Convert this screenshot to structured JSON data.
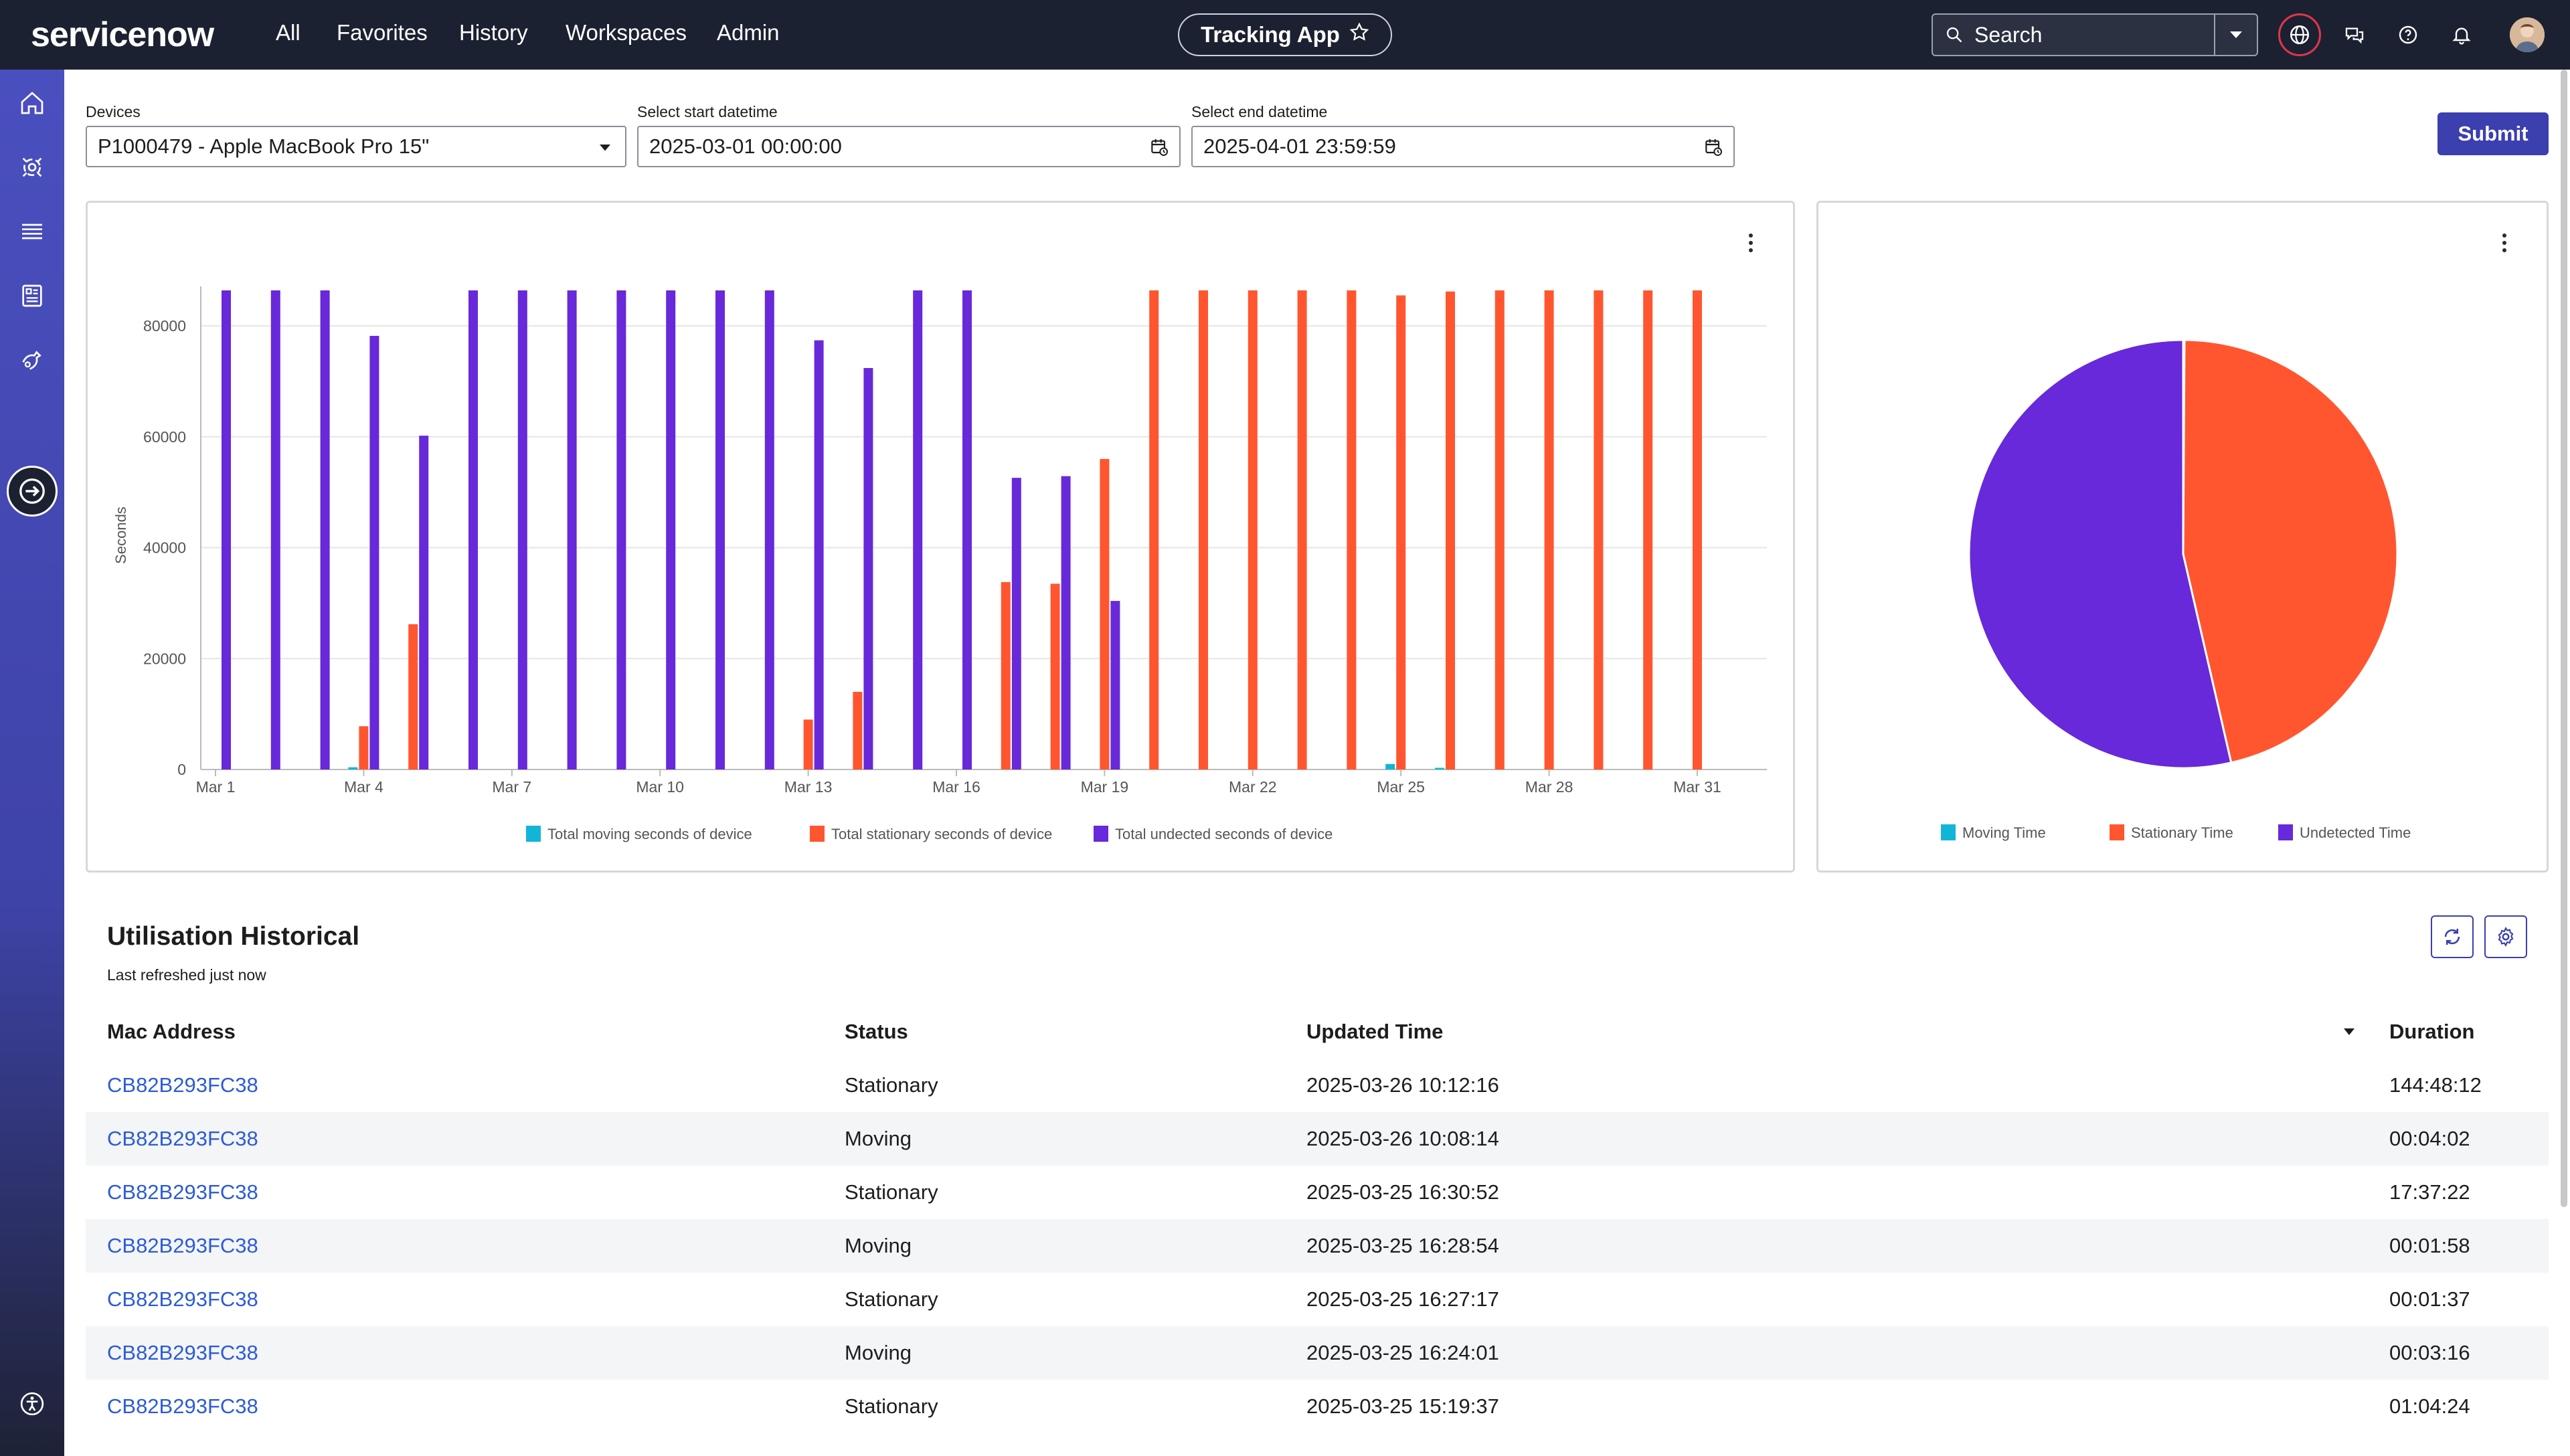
{
  "nav": {
    "logo_text": "servicenow",
    "links": [
      "All",
      "Favorites",
      "History",
      "Workspaces",
      "Admin"
    ],
    "app_pill": "Tracking App",
    "search_label": "Search"
  },
  "filters": {
    "devices_label": "Devices",
    "devices_value": "P1000479 - Apple MacBook Pro 15\"",
    "start_label": "Select start datetime",
    "start_value": "2025-03-01 00:00:00",
    "end_label": "Select end datetime",
    "end_value": "2025-04-01 23:59:59",
    "submit_label": "Submit"
  },
  "chart_data": [
    {
      "type": "bar",
      "ylabel": "Seconds",
      "ylim": [
        0,
        86400
      ],
      "yticks": [
        0,
        20000,
        40000,
        60000,
        80000
      ],
      "x_tick_labels": [
        "Mar 1",
        "Mar 4",
        "Mar 7",
        "Mar 10",
        "Mar 13",
        "Mar 16",
        "Mar 19",
        "Mar 22",
        "Mar 25",
        "Mar 28",
        "Mar 31"
      ],
      "categories": [
        "Mar 1",
        "Mar 2",
        "Mar 3",
        "Mar 4",
        "Mar 5",
        "Mar 6",
        "Mar 7",
        "Mar 8",
        "Mar 9",
        "Mar 10",
        "Mar 11",
        "Mar 12",
        "Mar 13",
        "Mar 14",
        "Mar 15",
        "Mar 16",
        "Mar 17",
        "Mar 18",
        "Mar 19",
        "Mar 20",
        "Mar 21",
        "Mar 22",
        "Mar 23",
        "Mar 24",
        "Mar 25",
        "Mar 26",
        "Mar 27",
        "Mar 28",
        "Mar 29",
        "Mar 30",
        "Mar 31"
      ],
      "series": [
        {
          "name": "Total moving seconds of device",
          "color": "#12b5d8",
          "values": [
            0,
            0,
            0,
            400,
            0,
            0,
            0,
            0,
            0,
            0,
            0,
            0,
            0,
            0,
            0,
            0,
            0,
            0,
            0,
            0,
            0,
            0,
            0,
            0,
            1000,
            300,
            0,
            0,
            0,
            0,
            0
          ]
        },
        {
          "name": "Total stationary seconds of device",
          "color": "#ff5630",
          "values": [
            0,
            0,
            0,
            7800,
            26200,
            0,
            0,
            0,
            0,
            0,
            0,
            0,
            9000,
            14000,
            0,
            0,
            33800,
            33500,
            56000,
            86400,
            86400,
            86400,
            86400,
            86400,
            85500,
            86200,
            86400,
            86400,
            86400,
            86400,
            86400
          ]
        },
        {
          "name": "Total undected seconds of device",
          "color": "#6729d9",
          "values": [
            86400,
            86400,
            86400,
            78200,
            60200,
            86400,
            86400,
            86400,
            86400,
            86400,
            86400,
            86400,
            77400,
            72400,
            86400,
            86400,
            52600,
            52900,
            30400,
            0,
            0,
            0,
            0,
            0,
            0,
            0,
            0,
            0,
            0,
            0,
            0
          ]
        }
      ]
    },
    {
      "type": "pie",
      "slices": [
        {
          "name": "Moving Time",
          "value": 0.1,
          "color": "#12b5d8"
        },
        {
          "name": "Stationary Time",
          "value": 46.3,
          "color": "#ff5630"
        },
        {
          "name": "Undetected Time",
          "value": 53.6,
          "color": "#6729d9"
        }
      ]
    }
  ],
  "table": {
    "title": "Utilisation Historical",
    "subtitle": "Last refreshed just now",
    "headers": {
      "mac": "Mac Address",
      "status": "Status",
      "time": "Updated Time",
      "duration": "Duration"
    },
    "rows": [
      {
        "mac": "CB82B293FC38",
        "status": "Stationary",
        "time": "2025-03-26 10:12:16",
        "duration": "144:48:12"
      },
      {
        "mac": "CB82B293FC38",
        "status": "Moving",
        "time": "2025-03-26 10:08:14",
        "duration": "00:04:02"
      },
      {
        "mac": "CB82B293FC38",
        "status": "Stationary",
        "time": "2025-03-25 16:30:52",
        "duration": "17:37:22"
      },
      {
        "mac": "CB82B293FC38",
        "status": "Moving",
        "time": "2025-03-25 16:28:54",
        "duration": "00:01:58"
      },
      {
        "mac": "CB82B293FC38",
        "status": "Stationary",
        "time": "2025-03-25 16:27:17",
        "duration": "00:01:37"
      },
      {
        "mac": "CB82B293FC38",
        "status": "Moving",
        "time": "2025-03-25 16:24:01",
        "duration": "00:03:16"
      },
      {
        "mac": "CB82B293FC38",
        "status": "Stationary",
        "time": "2025-03-25 15:19:37",
        "duration": "01:04:24"
      }
    ]
  }
}
